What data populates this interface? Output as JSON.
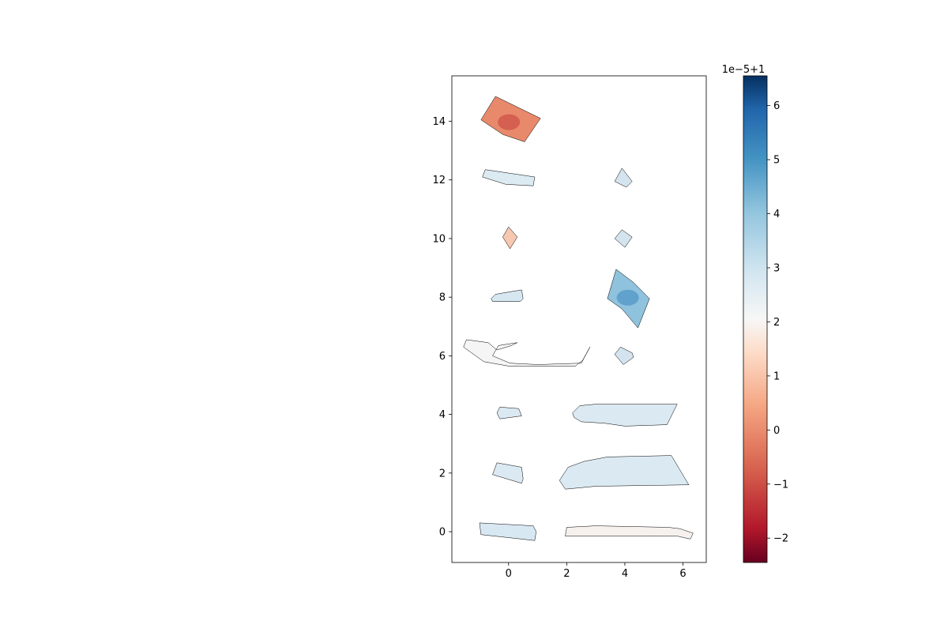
{
  "chart_data": {
    "type": "heatmap",
    "title": "",
    "xlabel": "",
    "ylabel": "",
    "xlim": [
      -1.95,
      6.8
    ],
    "ylim": [
      -1.05,
      15.55
    ],
    "xticks": [
      0,
      2,
      4,
      6
    ],
    "yticks": [
      0,
      2,
      4,
      6,
      8,
      10,
      12,
      14
    ],
    "xtick_labels": [
      "0",
      "2",
      "4",
      "6"
    ],
    "ytick_labels": [
      "0",
      "2",
      "4",
      "6",
      "8",
      "10",
      "12",
      "14"
    ],
    "grid": false,
    "colorbar": {
      "colormap": "RdBu",
      "offset_label": "1e−5+1",
      "vmin": -2.45,
      "vmax": 6.55,
      "ticks": [
        -2,
        -1,
        0,
        1,
        2,
        3,
        4,
        5,
        6
      ],
      "tick_labels": [
        "−2",
        "−1",
        "0",
        "1",
        "2",
        "3",
        "4",
        "5",
        "6"
      ],
      "low_color": "#67001f",
      "mid_color": "#f7f7f7",
      "high_color": "#053061"
    },
    "pieces": [
      {
        "name": "patch-0-0",
        "fill": "#e8896b",
        "hot": "#c43c3c",
        "outline": [
          [
            -0.95,
            14.05
          ],
          [
            -0.45,
            14.85
          ],
          [
            1.1,
            14.1
          ],
          [
            0.55,
            13.3
          ],
          [
            -0.2,
            13.55
          ]
        ]
      },
      {
        "name": "patch-0-1",
        "fill": "#dceaf2",
        "outline": [
          [
            -0.9,
            12.1
          ],
          [
            -0.8,
            12.35
          ],
          [
            0.9,
            12.1
          ],
          [
            0.85,
            11.8
          ],
          [
            -0.1,
            11.85
          ]
        ]
      },
      {
        "name": "patch-0-2",
        "fill": "#f6c7b1",
        "outline": [
          [
            -0.2,
            10.05
          ],
          [
            0.0,
            10.4
          ],
          [
            0.3,
            10.05
          ],
          [
            0.05,
            9.65
          ]
        ]
      },
      {
        "name": "patch-0-3",
        "fill": "#d6e7f1",
        "outline": [
          [
            -0.6,
            7.95
          ],
          [
            -0.45,
            8.1
          ],
          [
            0.45,
            8.25
          ],
          [
            0.5,
            7.95
          ],
          [
            0.4,
            7.85
          ],
          [
            -0.55,
            7.85
          ]
        ]
      },
      {
        "name": "patch-0-4",
        "fill": "#f5f5f5",
        "outline": [
          [
            -1.55,
            6.3
          ],
          [
            -1.45,
            6.55
          ],
          [
            -0.7,
            6.45
          ],
          [
            -0.4,
            6.2
          ],
          [
            0.1,
            6.35
          ],
          [
            0.3,
            6.45
          ],
          [
            -0.35,
            6.35
          ],
          [
            -0.55,
            6.0
          ],
          [
            0.05,
            5.75
          ],
          [
            1.0,
            5.7
          ],
          [
            2.5,
            5.75
          ],
          [
            2.8,
            6.3
          ],
          [
            2.55,
            5.85
          ],
          [
            2.3,
            5.65
          ],
          [
            0.0,
            5.65
          ],
          [
            -0.85,
            5.8
          ]
        ]
      },
      {
        "name": "patch-0-5",
        "fill": "#dbe9f2",
        "outline": [
          [
            -0.4,
            4.05
          ],
          [
            -0.3,
            4.25
          ],
          [
            0.35,
            4.2
          ],
          [
            0.45,
            3.95
          ],
          [
            -0.3,
            3.85
          ]
        ]
      },
      {
        "name": "patch-0-6",
        "fill": "#dbe9f2",
        "outline": [
          [
            -0.55,
            1.95
          ],
          [
            -0.4,
            2.35
          ],
          [
            0.45,
            2.2
          ],
          [
            0.5,
            1.8
          ],
          [
            0.45,
            1.65
          ]
        ]
      },
      {
        "name": "patch-0-7",
        "fill": "#d8e8f2",
        "outline": [
          [
            -1.0,
            0.3
          ],
          [
            -0.95,
            -0.1
          ],
          [
            0.9,
            -0.3
          ],
          [
            0.95,
            0.0
          ],
          [
            0.85,
            0.2
          ]
        ]
      },
      {
        "name": "patch-1-0",
        "fill": "#d3e4ef",
        "outline": [
          [
            3.65,
            11.95
          ],
          [
            3.9,
            12.4
          ],
          [
            4.25,
            11.95
          ],
          [
            4.05,
            11.75
          ]
        ]
      },
      {
        "name": "patch-1-1",
        "fill": "#d3e4ef",
        "outline": [
          [
            3.65,
            10.0
          ],
          [
            3.9,
            10.3
          ],
          [
            4.25,
            10.05
          ],
          [
            4.0,
            9.7
          ]
        ]
      },
      {
        "name": "patch-1-2",
        "fill": "#8fc2dd",
        "hot": "#3a86c0",
        "outline": [
          [
            3.4,
            7.95
          ],
          [
            3.7,
            8.95
          ],
          [
            4.3,
            8.5
          ],
          [
            4.85,
            7.95
          ],
          [
            4.45,
            6.95
          ],
          [
            3.9,
            7.6
          ]
        ]
      },
      {
        "name": "patch-1-3",
        "fill": "#d3e4ef",
        "outline": [
          [
            3.65,
            6.05
          ],
          [
            3.85,
            6.3
          ],
          [
            4.25,
            6.1
          ],
          [
            4.3,
            5.95
          ],
          [
            3.95,
            5.7
          ]
        ]
      },
      {
        "name": "patch-1-4",
        "fill": "#dbe9f2",
        "outline": [
          [
            2.2,
            4.05
          ],
          [
            2.45,
            4.3
          ],
          [
            3.0,
            4.35
          ],
          [
            5.8,
            4.35
          ],
          [
            5.45,
            3.65
          ],
          [
            4.0,
            3.6
          ],
          [
            3.3,
            3.7
          ],
          [
            2.5,
            3.75
          ],
          [
            2.25,
            3.9
          ]
        ]
      },
      {
        "name": "patch-1-5",
        "fill": "#dbe9f2",
        "outline": [
          [
            1.75,
            1.75
          ],
          [
            2.05,
            2.2
          ],
          [
            2.6,
            2.4
          ],
          [
            3.4,
            2.55
          ],
          [
            5.6,
            2.6
          ],
          [
            6.2,
            1.6
          ],
          [
            3.0,
            1.55
          ],
          [
            1.95,
            1.45
          ]
        ]
      },
      {
        "name": "patch-1-6",
        "fill": "#f7f1ee",
        "outline": [
          [
            1.95,
            -0.15
          ],
          [
            2.0,
            0.15
          ],
          [
            3.0,
            0.2
          ],
          [
            5.5,
            0.15
          ],
          [
            5.9,
            0.1
          ],
          [
            6.35,
            -0.05
          ],
          [
            6.25,
            -0.25
          ],
          [
            5.8,
            -0.15
          ],
          [
            4.0,
            -0.15
          ]
        ]
      }
    ]
  }
}
